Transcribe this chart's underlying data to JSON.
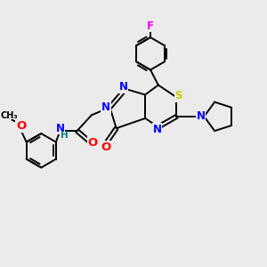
{
  "background_color": "#ebebeb",
  "bond_color": "#000000",
  "atom_colors": {
    "N": "#0000ff",
    "O": "#ff0000",
    "S": "#cccc00",
    "F": "#ff00ff",
    "C": "#000000",
    "H": "#008080"
  },
  "font_size_atom": 8.5,
  "line_width": 1.4
}
